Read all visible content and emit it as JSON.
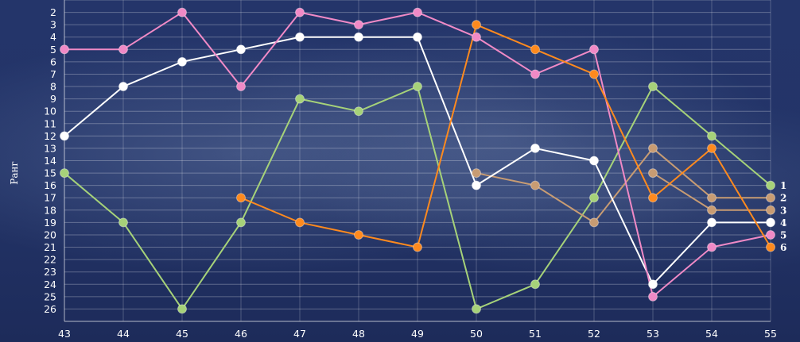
{
  "chart_data": {
    "type": "line",
    "ylabel": "Ранг",
    "xlabel": "",
    "title": "",
    "x": [
      43,
      44,
      45,
      46,
      47,
      48,
      49,
      50,
      51,
      52,
      53,
      54,
      55
    ],
    "yticks": [
      2,
      3,
      4,
      5,
      6,
      7,
      8,
      9,
      10,
      11,
      12,
      13,
      14,
      15,
      16,
      17,
      18,
      19,
      20,
      21,
      22,
      23,
      24,
      25,
      26
    ],
    "ylim": [
      1,
      27
    ],
    "y_inverted": true,
    "grid": true,
    "legend": "end-labels-right",
    "series": [
      {
        "label": "1",
        "color": "#a6d279",
        "values": [
          15,
          19,
          26,
          19,
          9,
          10,
          8,
          26,
          24,
          17,
          8,
          12,
          16
        ]
      },
      {
        "label": "2",
        "color": "#c89c73",
        "values": [
          null,
          null,
          null,
          null,
          null,
          null,
          null,
          15,
          16,
          19,
          13,
          17,
          17
        ]
      },
      {
        "label": "3",
        "color": "#c89c73",
        "values": [
          null,
          null,
          null,
          null,
          null,
          null,
          null,
          null,
          null,
          null,
          15,
          18,
          18
        ]
      },
      {
        "label": "4",
        "color": "#ffffff",
        "values": [
          12,
          8,
          6,
          5,
          4,
          4,
          4,
          16,
          13,
          14,
          24,
          19,
          19
        ]
      },
      {
        "label": "5",
        "color": "#f08ac6",
        "values": [
          5,
          5,
          2,
          8,
          2,
          3,
          2,
          4,
          7,
          5,
          25,
          21,
          20
        ]
      },
      {
        "label": "6",
        "color": "#ff8a1e",
        "values": [
          null,
          null,
          null,
          17,
          19,
          20,
          21,
          3,
          5,
          7,
          17,
          13,
          21
        ]
      }
    ]
  }
}
